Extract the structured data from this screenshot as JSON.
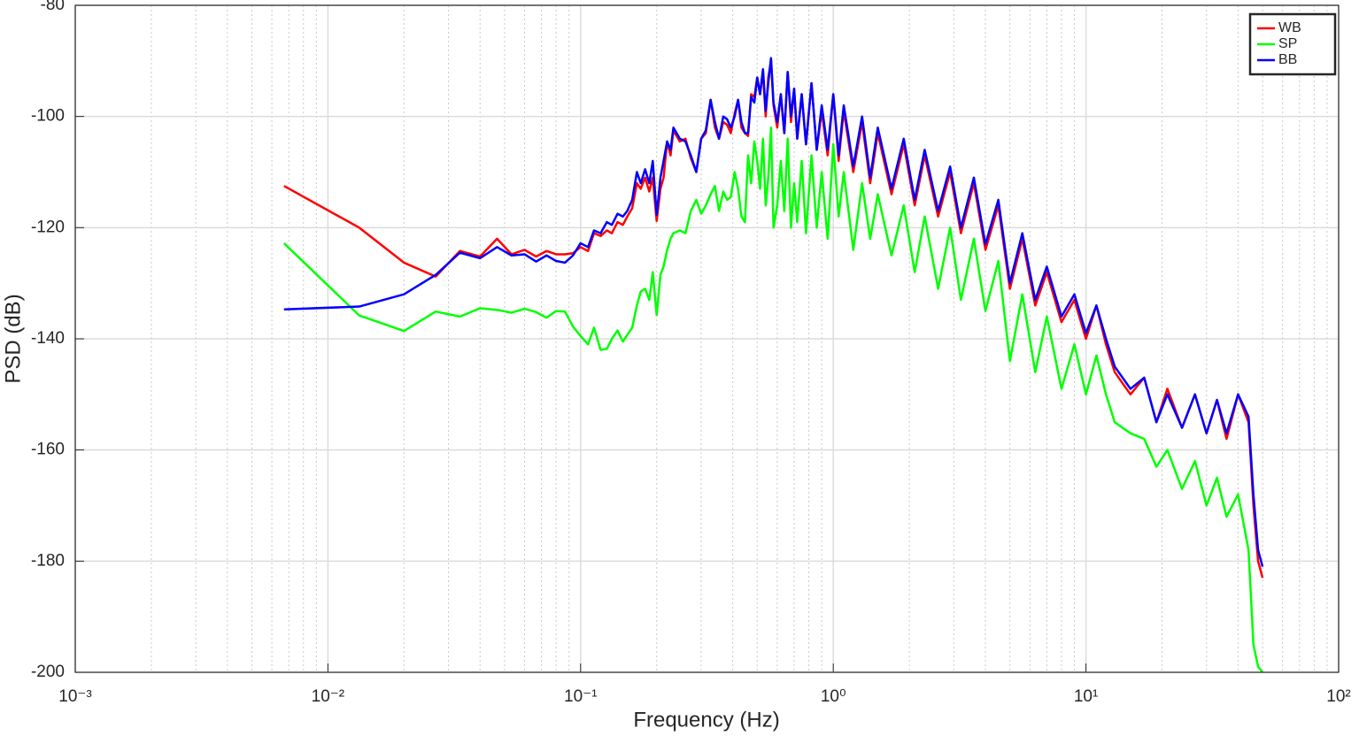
{
  "chart_data": {
    "type": "line",
    "xlabel": "Frequency (Hz)",
    "ylabel": "PSD (dB)",
    "x_scale": "log",
    "grid": true,
    "legend": "northeast",
    "xlim": [
      0.001,
      100
    ],
    "ylim": [
      -200,
      -80
    ],
    "xticks": [
      {
        "value": 0.001,
        "label": "10⁻³"
      },
      {
        "value": 0.01,
        "label": "10⁻²"
      },
      {
        "value": 0.1,
        "label": "10⁻¹"
      },
      {
        "value": 1,
        "label": "10⁰"
      },
      {
        "value": 10,
        "label": "10¹"
      },
      {
        "value": 100,
        "label": "10²"
      }
    ],
    "xminorticks": [
      0.002,
      0.003,
      0.004,
      0.005,
      0.006,
      0.007,
      0.008,
      0.009,
      0.02,
      0.03,
      0.04,
      0.05,
      0.06,
      0.07,
      0.08,
      0.09,
      0.2,
      0.3,
      0.4,
      0.5,
      0.6,
      0.7,
      0.8,
      0.9,
      2,
      3,
      4,
      5,
      6,
      7,
      8,
      9,
      20,
      30,
      40,
      50,
      60,
      70,
      80,
      90
    ],
    "yticks": [
      -200,
      -180,
      -160,
      -140,
      -120,
      -100,
      -80
    ],
    "x": [
      0.0067,
      0.0133,
      0.02,
      0.0267,
      0.0333,
      0.04,
      0.0467,
      0.0533,
      0.06,
      0.0667,
      0.0733,
      0.08,
      0.0867,
      0.0933,
      0.1,
      0.107,
      0.113,
      0.12,
      0.127,
      0.133,
      0.14,
      0.147,
      0.153,
      0.16,
      0.167,
      0.173,
      0.18,
      0.187,
      0.193,
      0.2,
      0.207,
      0.213,
      0.22,
      0.227,
      0.233,
      0.247,
      0.26,
      0.273,
      0.287,
      0.3,
      0.313,
      0.327,
      0.34,
      0.353,
      0.367,
      0.38,
      0.393,
      0.407,
      0.42,
      0.433,
      0.447,
      0.46,
      0.473,
      0.487,
      0.5,
      0.513,
      0.527,
      0.54,
      0.553,
      0.567,
      0.58,
      0.6,
      0.62,
      0.64,
      0.66,
      0.68,
      0.7,
      0.72,
      0.75,
      0.78,
      0.82,
      0.86,
      0.9,
      0.95,
      1.0,
      1.05,
      1.1,
      1.2,
      1.3,
      1.4,
      1.5,
      1.7,
      1.9,
      2.1,
      2.3,
      2.6,
      2.9,
      3.2,
      3.6,
      4.0,
      4.5,
      5.0,
      5.6,
      6.3,
      7.0,
      8.0,
      9.0,
      10,
      11,
      12,
      13,
      15,
      17,
      19,
      21,
      24,
      27,
      30,
      33,
      36,
      40,
      44,
      46,
      48,
      50
    ],
    "series": [
      {
        "name": "WB",
        "color": "#ff0000",
        "values": [
          -112.5,
          -120,
          -126.3,
          -128.8,
          -124.2,
          -125.2,
          -122,
          -124.8,
          -124,
          -125.2,
          -124.2,
          -124.8,
          -124.8,
          -124.6,
          -123.5,
          -124.2,
          -121,
          -121.5,
          -120.5,
          -121,
          -119,
          -119.5,
          -118,
          -116.5,
          -112,
          -113,
          -111,
          -113.5,
          -111,
          -118.8,
          -113,
          -111,
          -104.5,
          -107,
          -102.5,
          -104.5,
          -104,
          -107.5,
          -110,
          -104,
          -103,
          -97,
          -102,
          -104,
          -101,
          -101.5,
          -103,
          -99.5,
          -97,
          -102,
          -103,
          -103.5,
          -96,
          -96.5,
          -93,
          -96,
          -92,
          -100,
          -93,
          -90,
          -98,
          -102,
          -96,
          -103,
          -92,
          -101,
          -95,
          -104,
          -96,
          -105,
          -94,
          -106,
          -99,
          -107,
          -96,
          -108,
          -99,
          -110,
          -101,
          -112,
          -103,
          -114,
          -105,
          -116,
          -107,
          -118,
          -110,
          -121,
          -112,
          -124,
          -116,
          -131,
          -122,
          -134,
          -128,
          -137,
          -133,
          -140,
          -134,
          -141,
          -146,
          -150,
          -147,
          -155,
          -149,
          -156,
          -150,
          -157,
          -151,
          -158,
          -150,
          -155,
          -170,
          -180,
          -183
        ]
      },
      {
        "name": "SP",
        "color": "#00ff00",
        "values": [
          -122.8,
          -135.8,
          -138.6,
          -135.1,
          -136,
          -134.5,
          -134.8,
          -135.3,
          -134.6,
          -135.2,
          -136.2,
          -135,
          -135.1,
          -137.8,
          -139.5,
          -141,
          -138,
          -142,
          -141.8,
          -140,
          -138.5,
          -140.5,
          -139.3,
          -138,
          -134,
          -131.5,
          -131,
          -133,
          -128,
          -135.7,
          -128.5,
          -127,
          -124,
          -122,
          -121,
          -120.5,
          -121,
          -117,
          -115,
          -117.5,
          -116,
          -114,
          -112.5,
          -117,
          -113.5,
          -115,
          -114.5,
          -110,
          -113,
          -118,
          -119,
          -107,
          -112,
          -104.5,
          -108,
          -113,
          -104,
          -116,
          -111,
          -102,
          -120,
          -116,
          -108,
          -117,
          -104,
          -120,
          -112,
          -119,
          -108,
          -121,
          -107,
          -120,
          -110,
          -122,
          -105,
          -118,
          -110,
          -124,
          -112,
          -122,
          -114,
          -125,
          -116,
          -128,
          -118,
          -131,
          -120,
          -133,
          -122,
          -135,
          -126,
          -144,
          -132,
          -146,
          -136,
          -149,
          -141,
          -150,
          -143,
          -150,
          -155,
          -157,
          -158,
          -163,
          -160,
          -167,
          -162,
          -170,
          -165,
          -172,
          -168,
          -178,
          -195,
          -199,
          -200
        ]
      },
      {
        "name": "BB",
        "color": "#0000ff",
        "values": [
          -134.7,
          -134.2,
          -132,
          -128.5,
          -124.5,
          -125.5,
          -123.5,
          -125,
          -124.8,
          -126.1,
          -125,
          -126,
          -126.3,
          -125,
          -122.8,
          -123.5,
          -120.5,
          -121,
          -119,
          -119.5,
          -117.5,
          -118,
          -117,
          -115,
          -110,
          -112,
          -109.5,
          -112,
          -108,
          -117.7,
          -111,
          -108,
          -104.5,
          -106,
          -102,
          -104,
          -104.5,
          -107,
          -110,
          -104,
          -102.5,
          -97,
          -101,
          -104,
          -100,
          -100.5,
          -102,
          -100,
          -97,
          -101,
          -103,
          -103,
          -96.5,
          -97.5,
          -93,
          -96,
          -91.5,
          -99,
          -94,
          -89.5,
          -97.5,
          -101,
          -96,
          -103,
          -92,
          -100,
          -95,
          -104,
          -96,
          -105,
          -94,
          -106,
          -98,
          -106,
          -96,
          -107,
          -98,
          -109,
          -100,
          -111,
          -102,
          -113,
          -104,
          -115,
          -106,
          -117,
          -109,
          -120,
          -111,
          -123,
          -115,
          -130,
          -121,
          -133,
          -127,
          -136,
          -132,
          -139,
          -134,
          -140,
          -145,
          -149,
          -147,
          -155,
          -150,
          -156,
          -150,
          -157,
          -151,
          -157,
          -150,
          -154,
          -168,
          -178,
          -181
        ]
      }
    ]
  }
}
